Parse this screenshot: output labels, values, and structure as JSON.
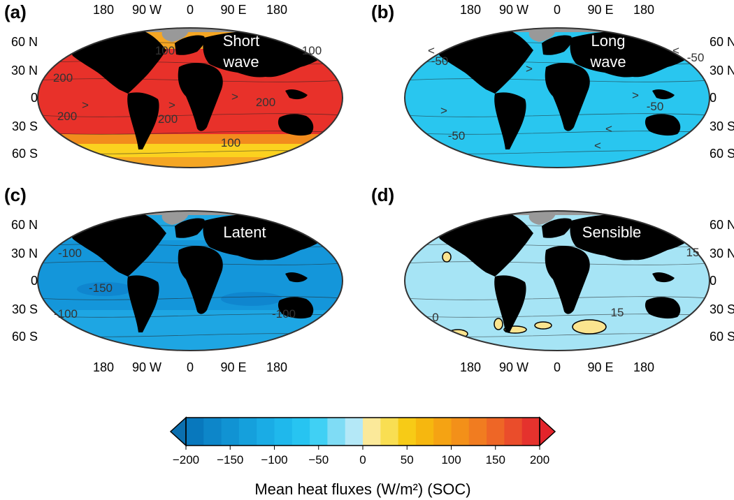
{
  "panels": [
    {
      "id": "a",
      "label": "(a)",
      "title_line1": "Short",
      "title_line2": "wave",
      "lon_ticks": [
        "180",
        "90 W",
        "0",
        "90 E",
        "180"
      ],
      "lon_ticks_position": "top",
      "lat_ticks": [
        "60 N",
        "30 N",
        "0",
        "30 S",
        "60 S"
      ],
      "lat_ticks_side": "left",
      "contour_labels": [
        "100",
        "200",
        "200",
        "200",
        "200",
        "100",
        "100"
      ],
      "arrow_marks": [
        ">",
        ">",
        ">"
      ],
      "dominant_colors": [
        "#e8312a",
        "#f5a623",
        "#fbd21f"
      ]
    },
    {
      "id": "b",
      "label": "(b)",
      "title_line1": "Long",
      "title_line2": "wave",
      "lon_ticks": [
        "180",
        "90 W",
        "0",
        "90 E",
        "180"
      ],
      "lon_ticks_position": "top",
      "lat_ticks": [
        "60 N",
        "30 N",
        "0",
        "30 S",
        "60 S"
      ],
      "lat_ticks_side": "right",
      "contour_labels": [
        "-50",
        "-50",
        "-50",
        "-50"
      ],
      "arrow_marks": [
        "<",
        "<",
        ">",
        ">",
        "<",
        "<",
        ">"
      ],
      "dominant_colors": [
        "#29c6ef"
      ]
    },
    {
      "id": "c",
      "label": "(c)",
      "title_line1": "Latent",
      "title_line2": "",
      "lon_ticks": [
        "180",
        "90 W",
        "0",
        "90 E",
        "180"
      ],
      "lon_ticks_position": "bottom",
      "lat_ticks": [
        "60 N",
        "30 N",
        "0",
        "30 S",
        "60 S"
      ],
      "lat_ticks_side": "left",
      "contour_labels": [
        "-100",
        "-150",
        "-100",
        "-100"
      ],
      "arrow_marks": [],
      "dominant_colors": [
        "#1ea6e3",
        "#0f86cf"
      ]
    },
    {
      "id": "d",
      "label": "(d)",
      "title_line1": "Sensible",
      "title_line2": "",
      "lon_ticks": [
        "180",
        "90 W",
        "0",
        "90 E",
        "180"
      ],
      "lon_ticks_position": "bottom",
      "lat_ticks": [
        "60 N",
        "30 N",
        "0",
        "30 S",
        "60 S"
      ],
      "lat_ticks_side": "right",
      "contour_labels": [
        "15",
        "15",
        "0",
        "15"
      ],
      "arrow_marks": [],
      "dominant_colors": [
        "#a6e4f5",
        "#fbe48f"
      ]
    }
  ],
  "colorbar": {
    "ticks": [
      "−200",
      "−150",
      "−100",
      "−50",
      "0",
      "50",
      "100",
      "150",
      "200"
    ],
    "range": [
      -200,
      200
    ],
    "step": 20,
    "extend": "both",
    "label": "Mean heat fluxes (W/m²) (SOC)",
    "colors": [
      "#0878bd",
      "#0d86c9",
      "#1193d3",
      "#15a0dc",
      "#1aace5",
      "#1fb8ec",
      "#27c4f1",
      "#40d0f4",
      "#7fdcf5",
      "#b4e8f7",
      "#fbe99a",
      "#f9de52",
      "#f7cb16",
      "#f6b70f",
      "#f5a313",
      "#f39019",
      "#f17c20",
      "#ee6626",
      "#ea4d2b",
      "#e5322d"
    ],
    "under_color": "#0b6faf",
    "over_color": "#e3242b"
  },
  "map_colors": {
    "land": "#000000",
    "ice": "#999999",
    "border": "#333333"
  }
}
